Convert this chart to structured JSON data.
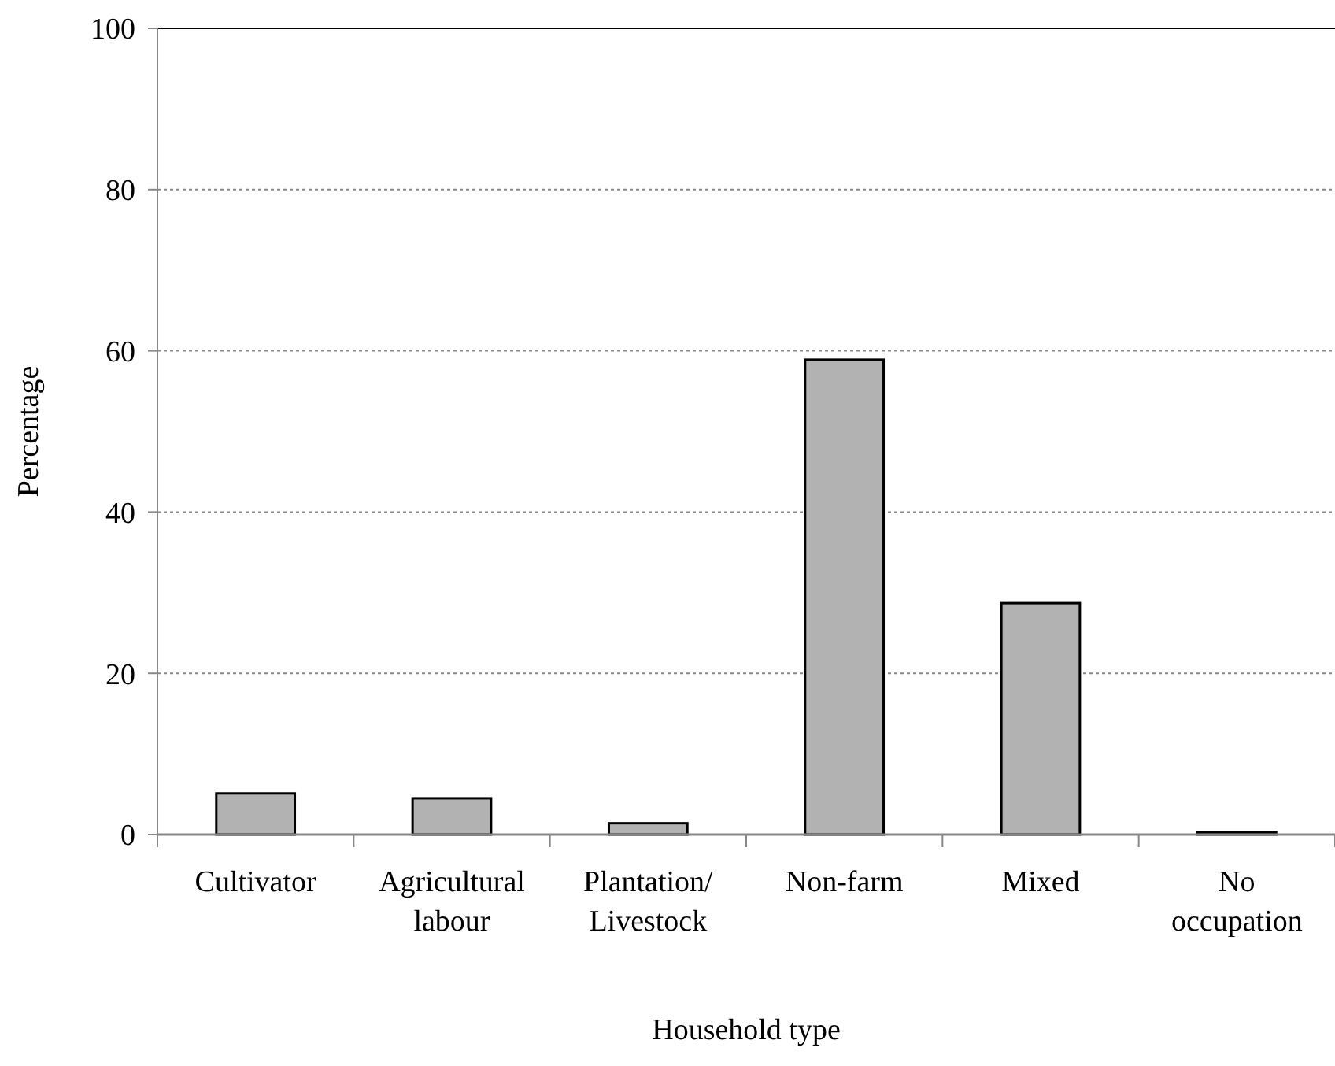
{
  "chart_data": {
    "type": "bar",
    "xlabel": "Household type",
    "ylabel": "Percentage",
    "categories": [
      "Cultivator",
      "Agricultural labour",
      "Plantation/ Livestock",
      "Non-farm",
      "Mixed",
      "No occupation"
    ],
    "values": [
      5.1,
      4.5,
      1.4,
      58.9,
      28.7,
      0.3
    ],
    "color": "#b2b2b2",
    "ylim": [
      0,
      100
    ],
    "yticks": [
      0,
      20,
      40,
      60,
      80,
      100
    ],
    "grid": "y"
  }
}
